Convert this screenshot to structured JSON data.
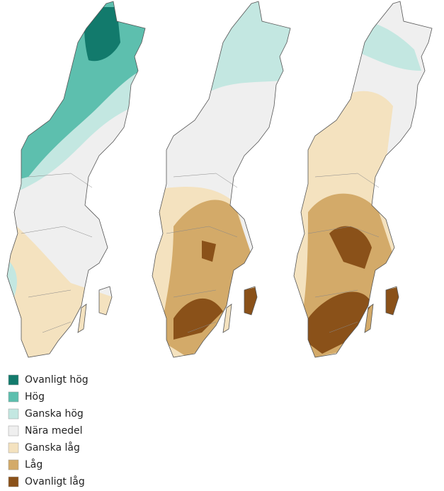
{
  "legend": {
    "items": [
      {
        "label": "Ovanligt hög",
        "color": "#127a6c"
      },
      {
        "label": "Hög",
        "color": "#5dbfae"
      },
      {
        "label": "Ganska hög",
        "color": "#c3e7e1"
      },
      {
        "label": "Nära medel",
        "color": "#efefef"
      },
      {
        "label": "Ganska låg",
        "color": "#f4e2bf"
      },
      {
        "label": "Låg",
        "color": "#d3aa69"
      },
      {
        "label": "Ovanligt låg",
        "color": "#8a5119"
      }
    ]
  }
}
